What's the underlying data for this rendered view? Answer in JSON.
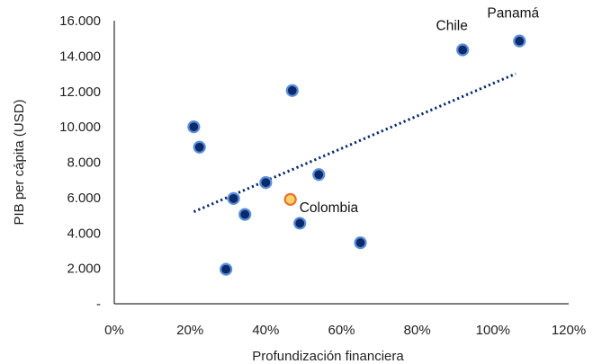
{
  "chart_data": {
    "type": "scatter",
    "title": "",
    "xlabel": "Profundización financiera",
    "ylabel": "PIB per cápita (USD)",
    "xlim": [
      0,
      120
    ],
    "ylim": [
      0,
      16000
    ],
    "x_ticks": [
      {
        "value": 0,
        "label": "0%"
      },
      {
        "value": 20,
        "label": "20%"
      },
      {
        "value": 40,
        "label": "40%"
      },
      {
        "value": 60,
        "label": "60%"
      },
      {
        "value": 80,
        "label": "80%"
      },
      {
        "value": 100,
        "label": "100%"
      },
      {
        "value": 120,
        "label": "120%"
      }
    ],
    "y_ticks": [
      {
        "value": 0,
        "label": "-"
      },
      {
        "value": 2000,
        "label": "2.000"
      },
      {
        "value": 4000,
        "label": "4.000"
      },
      {
        "value": 6000,
        "label": "6.000"
      },
      {
        "value": 8000,
        "label": "8.000"
      },
      {
        "value": 10000,
        "label": "10.000"
      },
      {
        "value": 12000,
        "label": "12.000"
      },
      {
        "value": 14000,
        "label": "14.000"
      },
      {
        "value": 16000,
        "label": "16.000"
      }
    ],
    "grid": false,
    "points": [
      {
        "x": 21,
        "y": 10000,
        "highlight": false,
        "label": ""
      },
      {
        "x": 22.5,
        "y": 8850,
        "highlight": false,
        "label": ""
      },
      {
        "x": 29.5,
        "y": 1950,
        "highlight": false,
        "label": ""
      },
      {
        "x": 31.5,
        "y": 5950,
        "highlight": false,
        "label": ""
      },
      {
        "x": 34.5,
        "y": 5050,
        "highlight": false,
        "label": ""
      },
      {
        "x": 40,
        "y": 6850,
        "highlight": false,
        "label": ""
      },
      {
        "x": 47,
        "y": 12050,
        "highlight": false,
        "label": ""
      },
      {
        "x": 49,
        "y": 4550,
        "highlight": false,
        "label": ""
      },
      {
        "x": 54,
        "y": 7300,
        "highlight": false,
        "label": ""
      },
      {
        "x": 65,
        "y": 3450,
        "highlight": false,
        "label": ""
      },
      {
        "x": 92,
        "y": 14350,
        "highlight": false,
        "label": "Chile"
      },
      {
        "x": 107,
        "y": 14850,
        "highlight": false,
        "label": "Panamá"
      },
      {
        "x": 46.5,
        "y": 5900,
        "highlight": true,
        "label": "Colombia"
      }
    ],
    "trendline": {
      "type": "linear",
      "style": "dotted",
      "from": {
        "x": 21,
        "y": 5200
      },
      "to": {
        "x": 106,
        "y": 13000
      }
    },
    "colors": {
      "point_fill": "#0a2a6b",
      "point_stroke": "#5b8ed6",
      "highlight_fill": "#f6d36b",
      "highlight_stroke": "#e8732a",
      "trendline": "#0a2a6b",
      "axis": "#000000"
    }
  }
}
